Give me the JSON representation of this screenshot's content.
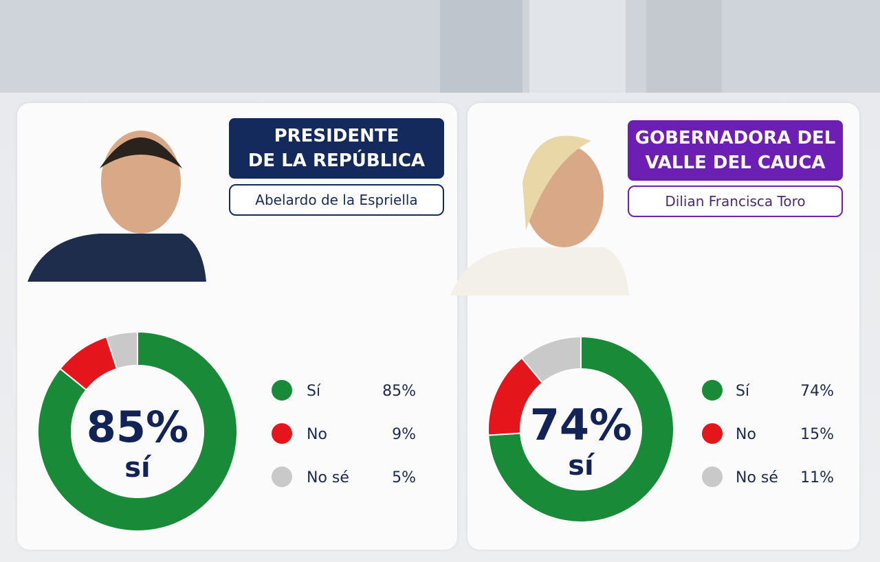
{
  "chart_data": [
    {
      "type": "pie",
      "donut": true,
      "title": "PRESIDENTE\nDE LA REPÚBLICA",
      "title_color": "#142a5c",
      "subtitle": "Abelardo de la Espriella",
      "center_label": "85%",
      "center_text": "sí",
      "categories": [
        "Sí",
        "No",
        "No sé"
      ],
      "values": [
        85,
        9,
        5
      ],
      "value_labels": [
        "85%",
        "9%",
        "5%"
      ],
      "colors": [
        "#188a38",
        "#e5161b",
        "#c9c9c9"
      ]
    },
    {
      "type": "pie",
      "donut": true,
      "title": "GOBERNADORA DEL\nVALLE DEL CAUCA",
      "title_color": "#6b1fb3",
      "subtitle": "Dilian Francisca Toro",
      "center_label": "74%",
      "center_text": "sí",
      "categories": [
        "Sí",
        "No",
        "No sé"
      ],
      "values": [
        74,
        15,
        11
      ],
      "value_labels": [
        "74%",
        "15%",
        "11%"
      ],
      "colors": [
        "#188a38",
        "#e5161b",
        "#c9c9c9"
      ]
    }
  ]
}
